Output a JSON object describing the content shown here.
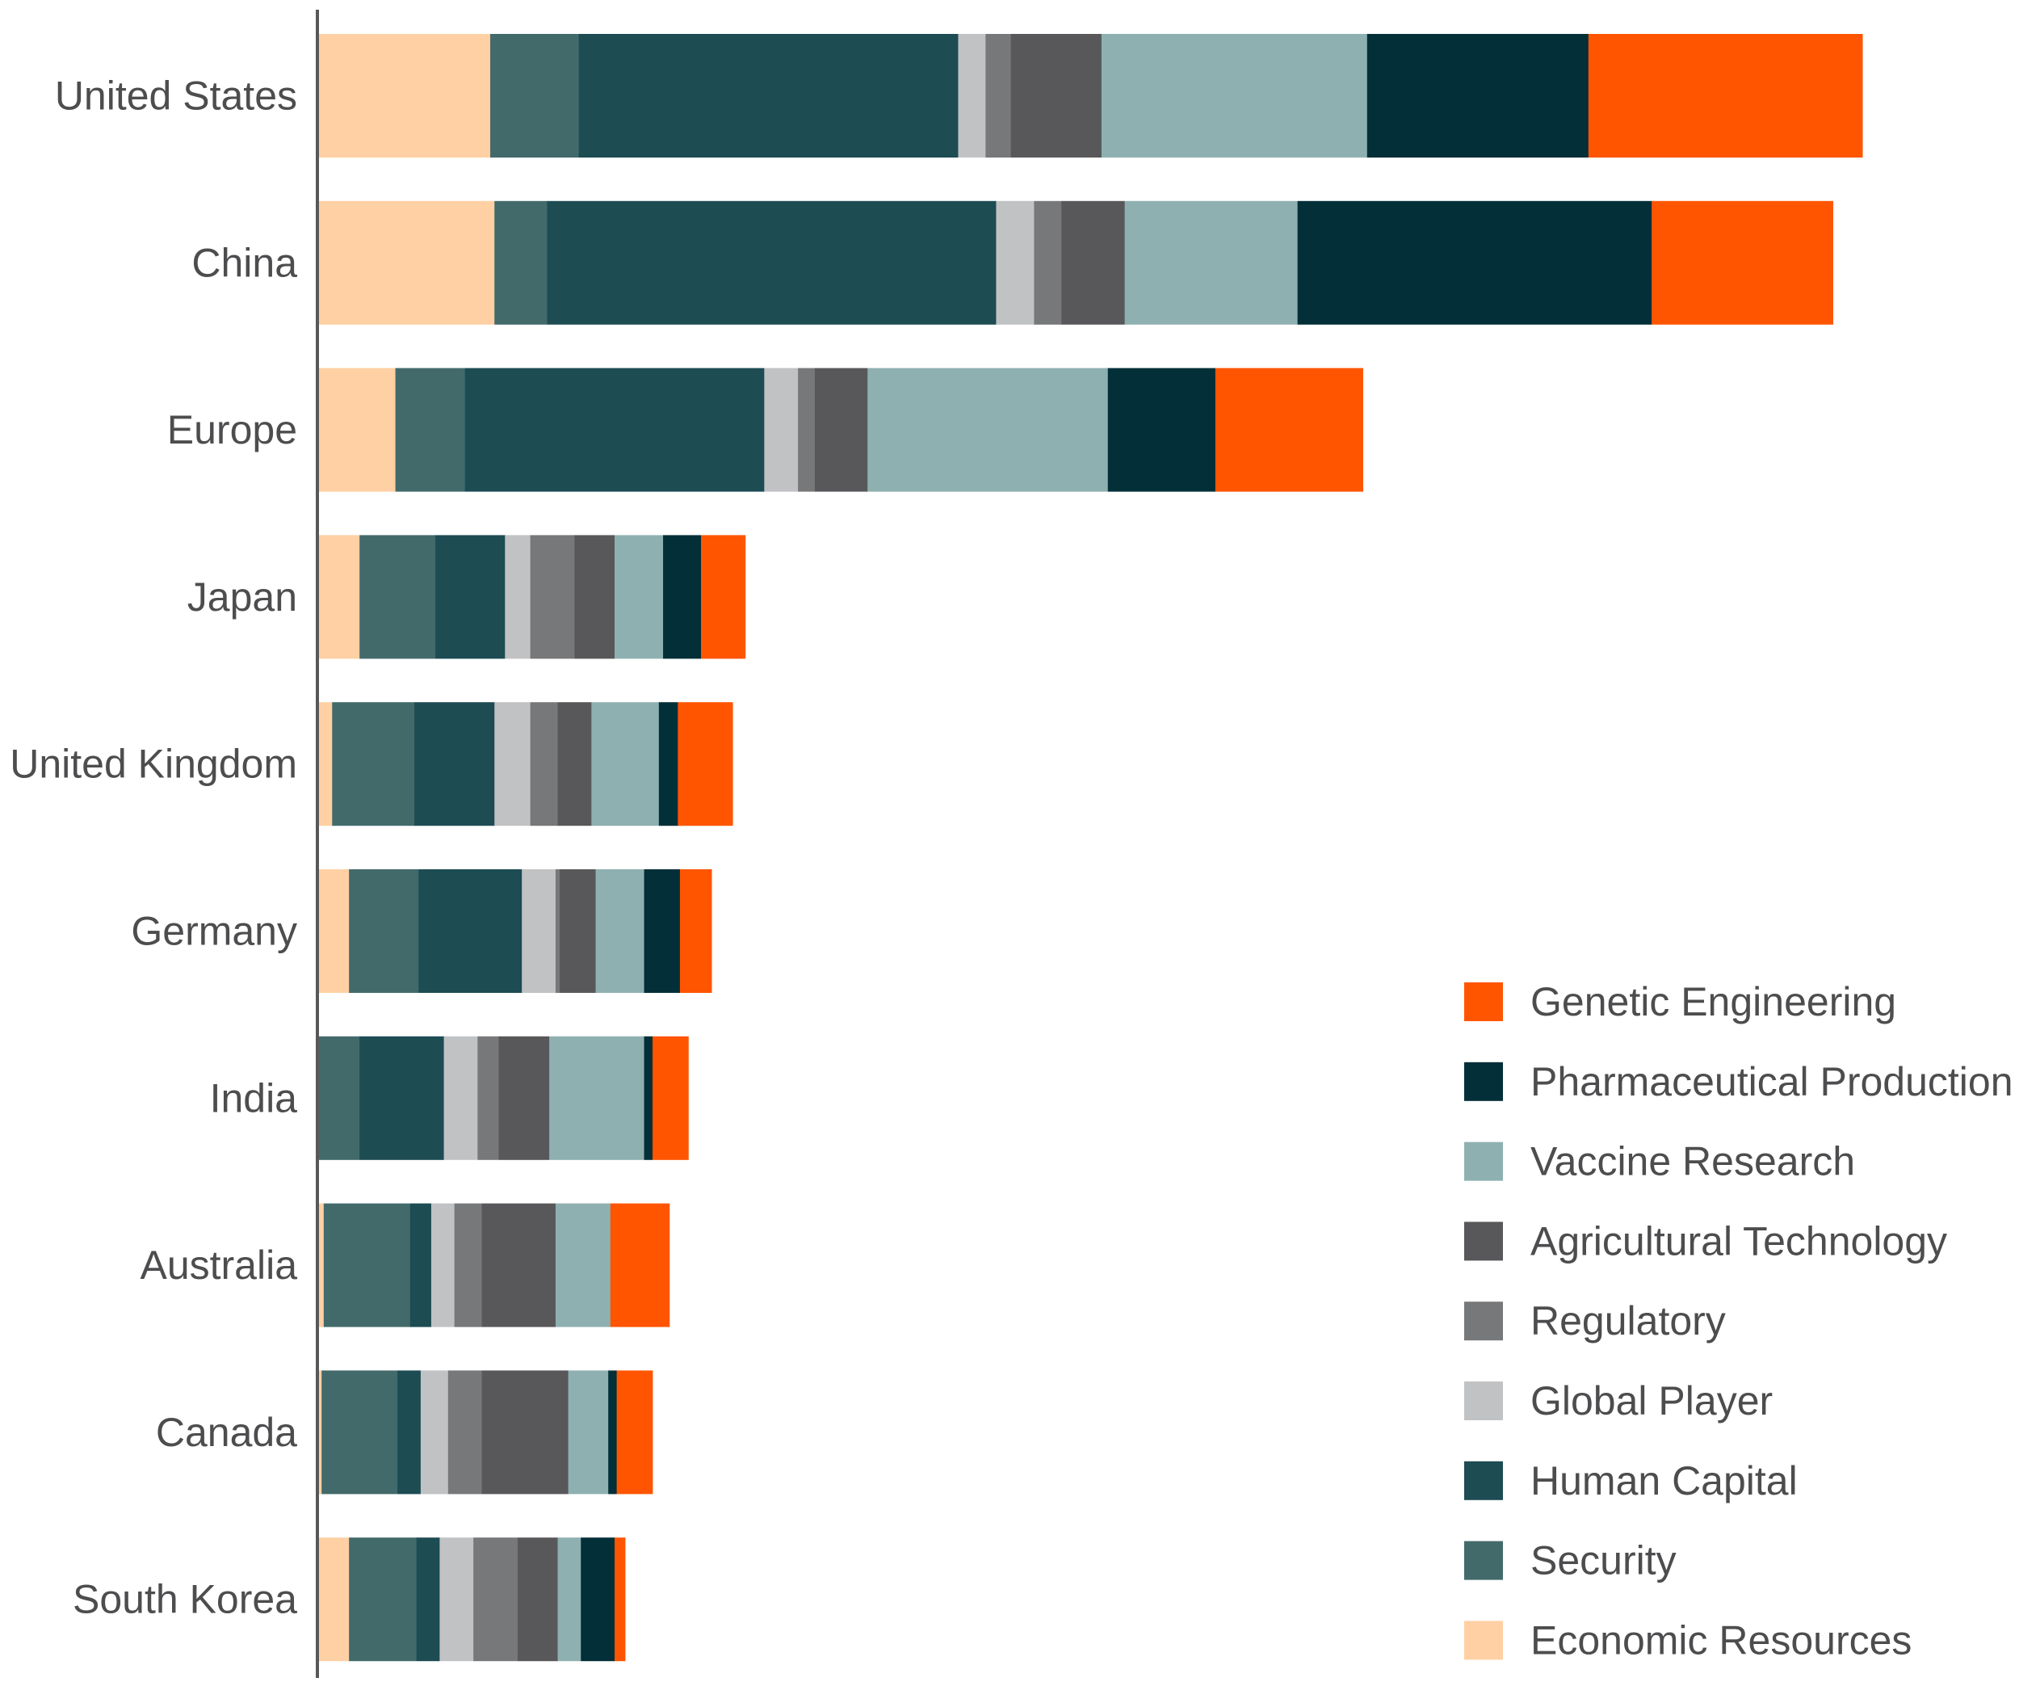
{
  "chart_data": {
    "type": "bar",
    "orientation": "horizontal",
    "stacked": true,
    "categories": [
      "United States",
      "China",
      "Europe",
      "Japan",
      "United Kingdom",
      "Germany",
      "India",
      "Australia",
      "Canada",
      "South Korea"
    ],
    "series": [
      {
        "name": "Economic Resources",
        "color": "#ffd0a3",
        "values": [
          8.2,
          8.4,
          3.7,
          2.0,
          0.7,
          1.5,
          0.0,
          0.3,
          0.2,
          1.5
        ]
      },
      {
        "name": "Security",
        "color": "#426a6b",
        "values": [
          4.2,
          2.5,
          3.3,
          3.6,
          3.9,
          3.3,
          2.0,
          4.1,
          3.6,
          3.2
        ]
      },
      {
        "name": "Human Capital",
        "color": "#1d4c53",
        "values": [
          18.0,
          21.3,
          14.2,
          3.3,
          3.8,
          4.9,
          4.0,
          1.0,
          1.1,
          1.1
        ]
      },
      {
        "name": "Global Player",
        "color": "#c1c2c4",
        "values": [
          1.3,
          1.8,
          1.6,
          1.2,
          1.7,
          1.6,
          1.6,
          1.1,
          1.3,
          1.6
        ]
      },
      {
        "name": "Regulatory",
        "color": "#77787a",
        "values": [
          1.2,
          1.3,
          0.8,
          2.1,
          1.3,
          0.2,
          1.0,
          1.3,
          1.6,
          2.1
        ]
      },
      {
        "name": "Agricultural Technology",
        "color": "#58585a",
        "values": [
          4.3,
          3.0,
          2.5,
          1.9,
          1.6,
          1.7,
          2.4,
          3.5,
          4.1,
          1.9
        ]
      },
      {
        "name": "Vaccine Research",
        "color": "#8fb0b0",
        "values": [
          12.6,
          8.2,
          11.4,
          2.3,
          3.2,
          2.3,
          4.5,
          2.6,
          1.9,
          1.1
        ]
      },
      {
        "name": "Pharmaceutical Production",
        "color": "#022f38",
        "values": [
          10.5,
          16.8,
          5.1,
          1.8,
          0.9,
          1.7,
          0.4,
          0.0,
          0.4,
          1.6
        ]
      },
      {
        "name": "Genetic Engineering",
        "color": "#ff5500",
        "values": [
          13.0,
          8.6,
          7.0,
          2.1,
          2.6,
          1.5,
          1.7,
          2.8,
          1.7,
          0.5
        ]
      }
    ],
    "xlim": [
      0,
      100
    ],
    "grid": false,
    "legend_position": "bottom-right"
  }
}
